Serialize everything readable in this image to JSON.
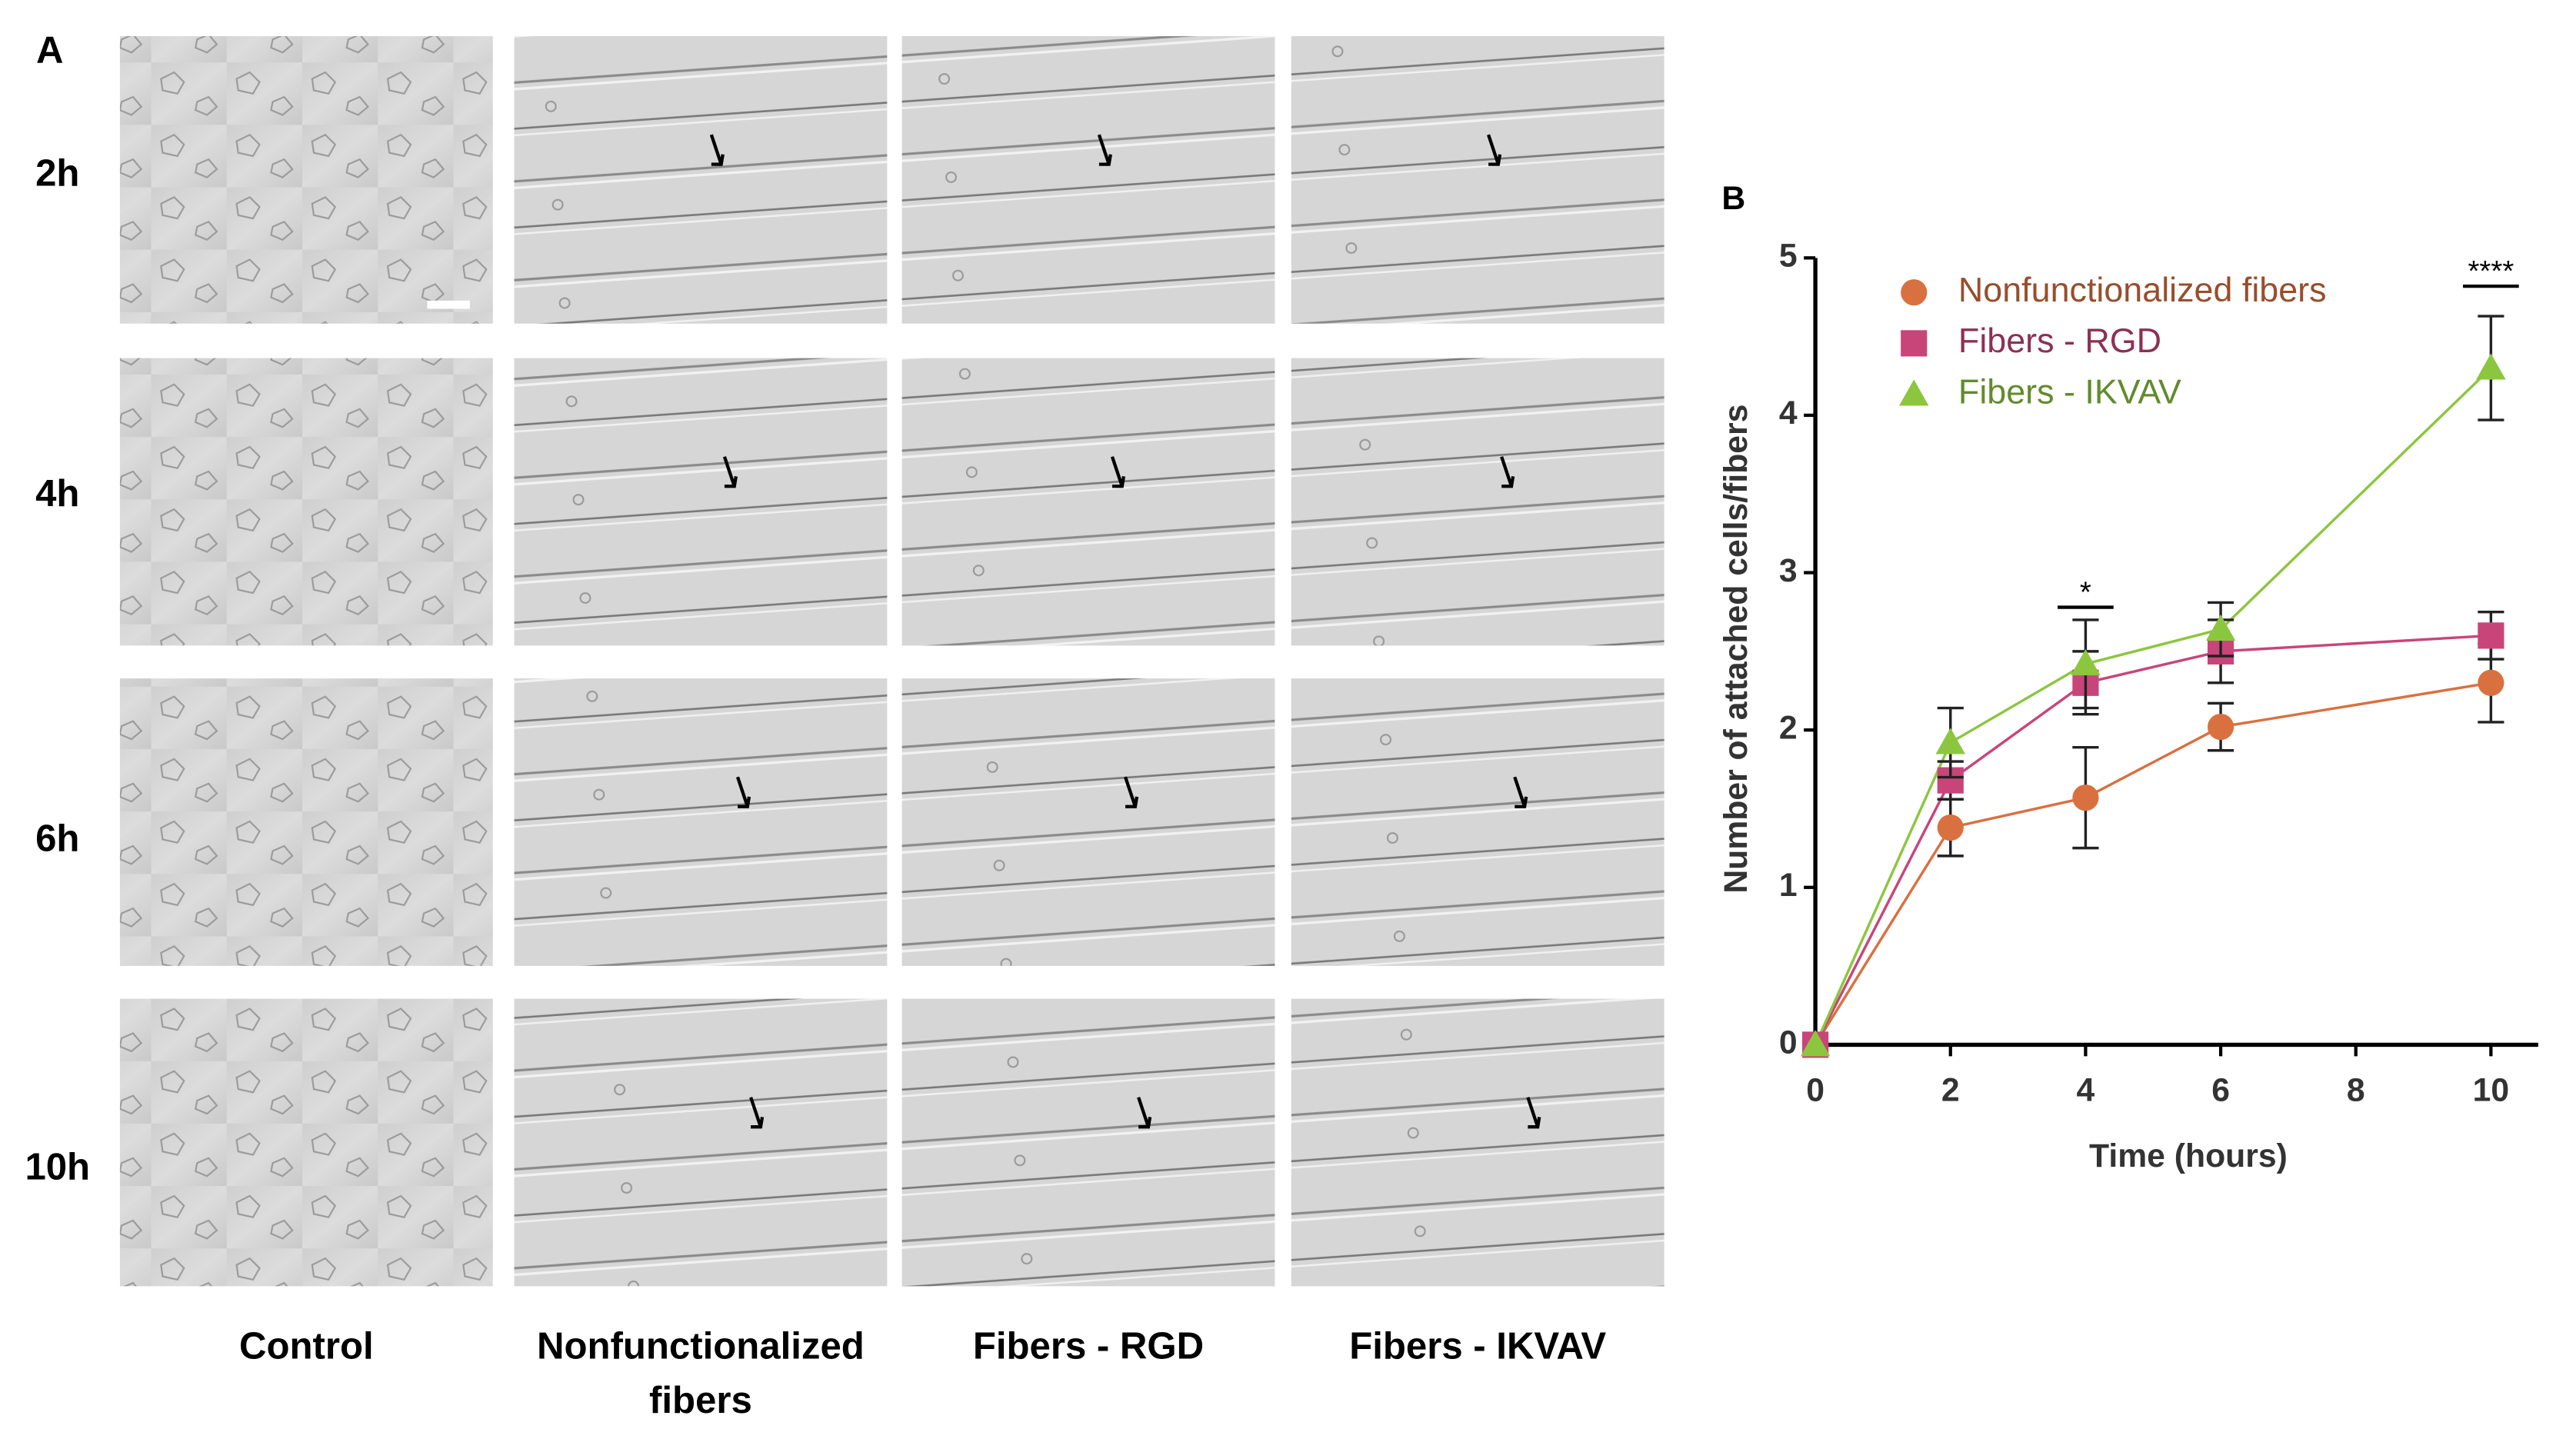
{
  "panel_a": {
    "label": "A",
    "rows": [
      "2h",
      "4h",
      "6h",
      "10h"
    ],
    "columns": [
      "Control",
      "Nonfunctionalized fibers",
      "Fibers - RGD",
      "Fibers - IKVAV"
    ]
  },
  "chart_data": {
    "type": "line",
    "panel_label": "B",
    "x_label": "Time (hours)",
    "y_label": "Number of attached cells/fibers",
    "x": [
      0,
      2,
      4,
      6,
      10
    ],
    "xlim": [
      0,
      10.7
    ],
    "xticks": [
      0,
      2,
      4,
      6,
      8,
      10
    ],
    "ylim": [
      0,
      5
    ],
    "yticks": [
      0,
      1,
      2,
      3,
      4,
      5
    ],
    "series": [
      {
        "name": "Nonfunctionalized fibers",
        "color": "#d9703f",
        "marker": "circle",
        "values": [
          0,
          1.38,
          1.57,
          2.02,
          2.3
        ],
        "errors": [
          0,
          0.18,
          0.32,
          0.15,
          0.25
        ]
      },
      {
        "name": "Fibers - RGD",
        "color": "#c8457a",
        "marker": "square",
        "values": [
          0,
          1.68,
          2.3,
          2.5,
          2.6
        ],
        "errors": [
          0,
          0.12,
          0.2,
          0.2,
          0.15
        ]
      },
      {
        "name": "Fibers - IKVAV",
        "color": "#8cc63f",
        "marker": "triangle",
        "values": [
          0,
          1.92,
          2.42,
          2.64,
          4.3
        ],
        "errors": [
          0,
          0.22,
          0.28,
          0.17,
          0.33
        ]
      }
    ],
    "annotations": [
      {
        "x": 4,
        "y": 2.78,
        "label": "*"
      },
      {
        "x": 10,
        "y": 4.82,
        "label": "****"
      }
    ]
  }
}
